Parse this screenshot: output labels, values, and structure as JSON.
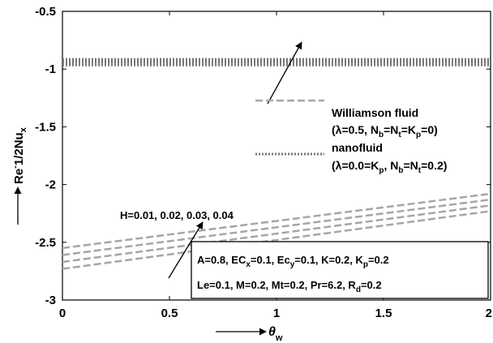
{
  "chart_data": {
    "type": "line",
    "xlabel": "θ",
    "xlabel_sub": "w",
    "ylabel": "Re",
    "ylabel_sup": "-",
    "ylabel_rest": "1/2Nu",
    "ylabel_sub": "x",
    "xlim": [
      0,
      2
    ],
    "ylim": [
      -3,
      -0.5
    ],
    "xticks": [
      0,
      0.5,
      1,
      1.5,
      2
    ],
    "xtick_labels": [
      "0",
      "0.5",
      "1",
      "1.5",
      "2"
    ],
    "yticks": [
      -3,
      -2.5,
      -2,
      -1.5,
      -1,
      -0.5
    ],
    "ytick_labels": [
      "-3",
      "-2.5",
      "-2",
      "-1.5",
      "-1",
      "-0.5"
    ],
    "grid": false,
    "colors": {
      "dashed": "#a6a6a6",
      "dotted": "#777777",
      "arrow": "#000000"
    },
    "williamson_series": [
      {
        "x": [
          0,
          2
        ],
        "y": [
          -2.55,
          -2.08
        ]
      },
      {
        "x": [
          0,
          2
        ],
        "y": [
          -2.61,
          -2.13
        ]
      },
      {
        "x": [
          0,
          2
        ],
        "y": [
          -2.67,
          -2.18
        ]
      },
      {
        "x": [
          0,
          2
        ],
        "y": [
          -2.73,
          -2.23
        ]
      }
    ],
    "nanofluid_band": {
      "x": [
        0,
        2
      ],
      "y_top": -0.91,
      "y_bottom": -0.97,
      "lines": 7
    },
    "legend": {
      "placement": "center-right",
      "items": [
        {
          "style": "dashed",
          "title": "Williamson fluid",
          "params": {
            "p1": "(λ=0.5, N",
            "s1": "b",
            "p2": "=N",
            "s2": "t",
            "p3": "=K",
            "s3": "p",
            "p4": "=0)"
          }
        },
        {
          "style": "dotted",
          "title": "nanofluid",
          "params": {
            "p1": "(λ=0.0=K",
            "s1": "p",
            "p2": ", N",
            "s2": "b",
            "p3": "=N",
            "s3": "t",
            "p4": "=0.2)"
          }
        }
      ]
    },
    "annotations": {
      "h_label": "H=0.01, 0.02, 0.03, 0.04",
      "params_box": {
        "line1": {
          "a": "A=0.8, EC",
          "a_sub": "x",
          "b": "=0.1, Ec",
          "b_sub": "y",
          "c": "=0.1, K=0.2, K",
          "c_sub": "p",
          "d": "=0.2"
        },
        "line2": {
          "a": "Le=0.1, M=0.2, Mt=0.2, Pr=6.2, R",
          "a_sub": "d",
          "b": "=0.2"
        }
      }
    }
  }
}
